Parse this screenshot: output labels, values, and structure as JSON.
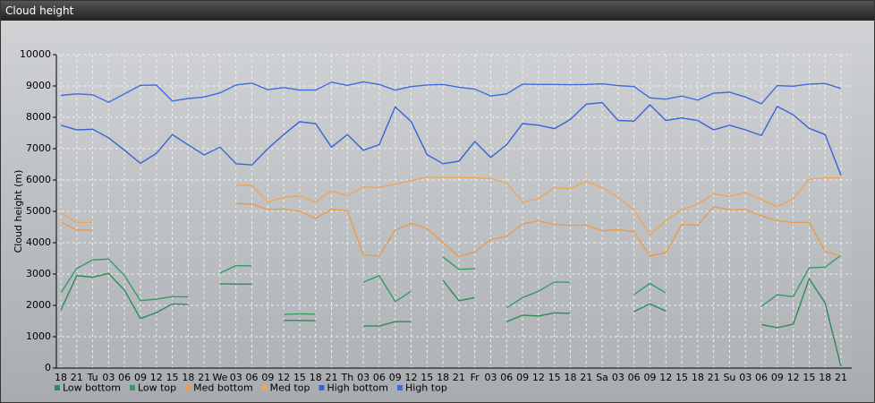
{
  "chart_data": {
    "type": "line",
    "title": "Cloud height",
    "y_label": "Cloud height (m)",
    "categories": [
      "18",
      "21",
      "Tu",
      "03",
      "06",
      "09",
      "12",
      "15",
      "18",
      "21",
      "We",
      "03",
      "06",
      "09",
      "12",
      "15",
      "18",
      "21",
      "Th",
      "03",
      "06",
      "09",
      "12",
      "15",
      "18",
      "21",
      "Fr",
      "03",
      "06",
      "09",
      "12",
      "15",
      "18",
      "21",
      "Sa",
      "03",
      "06",
      "09",
      "12",
      "15",
      "18",
      "21",
      "Su",
      "03",
      "06",
      "09",
      "12",
      "15",
      "18",
      "21"
    ],
    "ylim": [
      0,
      10000
    ],
    "yticks": [
      0,
      1000,
      2000,
      3000,
      4000,
      5000,
      6000,
      7000,
      8000,
      9000,
      10000
    ],
    "grid": true,
    "series": [
      {
        "name": "Low bottom",
        "color": "#2e8b57",
        "values": [
          1850,
          2950,
          2900,
          3020,
          2480,
          1580,
          1770,
          2050,
          2030,
          null,
          2690,
          2680,
          2680,
          null,
          1520,
          1520,
          1510,
          null,
          null,
          1340,
          1340,
          1480,
          1480,
          null,
          2800,
          2150,
          2250,
          null,
          1480,
          1690,
          1660,
          1760,
          1750,
          null,
          null,
          null,
          1800,
          2050,
          1820,
          null,
          null,
          null,
          null,
          null,
          1390,
          1290,
          1400,
          2850,
          2080,
          50
        ]
      },
      {
        "name": "Low top",
        "color": "#379a66",
        "values": [
          2400,
          3180,
          3450,
          3480,
          2950,
          2150,
          2200,
          2280,
          2270,
          null,
          3030,
          3270,
          3260,
          null,
          1710,
          1730,
          1720,
          null,
          null,
          2740,
          2950,
          2120,
          2450,
          null,
          3550,
          3150,
          3170,
          null,
          1920,
          2250,
          2450,
          2750,
          2730,
          null,
          null,
          null,
          2350,
          2700,
          2400,
          null,
          null,
          null,
          null,
          null,
          1970,
          2340,
          2280,
          3200,
          3220,
          3600
        ]
      },
      {
        "name": "Med bottom",
        "color": "#ec9a4c",
        "values": [
          4650,
          4400,
          4400,
          null,
          null,
          null,
          null,
          null,
          null,
          null,
          null,
          5250,
          5230,
          5060,
          5080,
          5000,
          4780,
          5060,
          5020,
          3600,
          3580,
          4400,
          4620,
          4450,
          4000,
          3560,
          3700,
          4100,
          4200,
          4600,
          4700,
          4580,
          4550,
          4560,
          4380,
          4420,
          4350,
          3580,
          3680,
          4580,
          4560,
          5150,
          5050,
          5060,
          4850,
          4700,
          4650,
          4650,
          3720,
          3580
        ]
      },
      {
        "name": "Med top",
        "color": "#f0a456",
        "values": [
          4950,
          4650,
          4650,
          null,
          null,
          null,
          null,
          null,
          null,
          null,
          null,
          5830,
          5830,
          5300,
          5450,
          5500,
          5300,
          5650,
          5500,
          5780,
          5760,
          5860,
          5980,
          6090,
          6080,
          6080,
          6070,
          6050,
          5900,
          5300,
          5400,
          5760,
          5720,
          5970,
          5750,
          5450,
          5050,
          4250,
          4700,
          5050,
          5230,
          5550,
          5480,
          5600,
          5370,
          5150,
          5400,
          6020,
          6070,
          6070
        ]
      },
      {
        "name": "High bottom",
        "color": "#3a62d6",
        "values": [
          7750,
          7600,
          7620,
          7350,
          6950,
          6530,
          6850,
          7450,
          7120,
          6800,
          7050,
          6520,
          6480,
          7000,
          7450,
          7860,
          7800,
          7050,
          7450,
          6950,
          7130,
          8330,
          7870,
          6810,
          6520,
          6600,
          7230,
          6720,
          7130,
          7800,
          7750,
          7640,
          7930,
          8420,
          8470,
          7900,
          7880,
          8400,
          7900,
          7980,
          7900,
          7600,
          7750,
          7600,
          7420,
          8350,
          8080,
          7650,
          7450,
          6150
        ]
      },
      {
        "name": "High top",
        "color": "#3f6ae0",
        "values": [
          8700,
          8750,
          8720,
          8480,
          8750,
          9020,
          9030,
          8520,
          8600,
          8650,
          8780,
          9030,
          9090,
          8880,
          8950,
          8870,
          8870,
          9120,
          9020,
          9130,
          9050,
          8870,
          8980,
          9030,
          9050,
          8960,
          8900,
          8680,
          8750,
          9060,
          9050,
          9050,
          9040,
          9050,
          9070,
          9010,
          8980,
          8620,
          8580,
          8680,
          8550,
          8770,
          8800,
          8650,
          8430,
          9010,
          8990,
          9060,
          9080,
          8920
        ]
      }
    ]
  }
}
